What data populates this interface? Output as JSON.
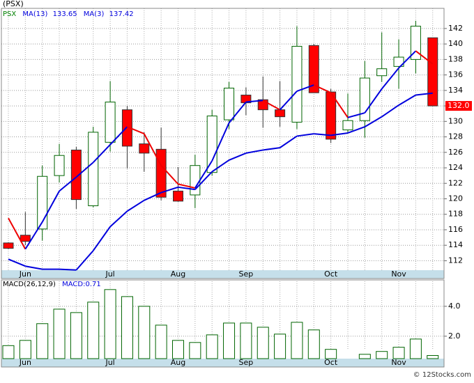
{
  "chart_data": [
    {
      "type": "candlestick",
      "title": "(PSX)",
      "categories": [
        null,
        "Jun",
        null,
        null,
        null,
        null,
        "Jul",
        null,
        null,
        null,
        "Aug",
        null,
        null,
        null,
        "Sep",
        null,
        null,
        null,
        null,
        "Oct",
        null,
        null,
        null,
        "Nov",
        null,
        null
      ],
      "open": [
        114.3,
        115.3,
        116.1,
        123.0,
        126.3,
        119.1,
        127.3,
        131.5,
        127.1,
        126.4,
        121.0,
        120.5,
        123.4,
        130.2,
        133.4,
        132.8,
        131.5,
        129.9,
        139.8,
        133.8,
        128.9,
        130.1,
        135.9,
        137.1,
        138.0,
        140.8
      ],
      "high": [
        114.4,
        118.3,
        124.3,
        127.1,
        126.7,
        129.3,
        135.2,
        132.0,
        128.6,
        129.2,
        124.1,
        125.7,
        131.5,
        135.1,
        134.4,
        135.8,
        135.2,
        142.3,
        140.0,
        134.2,
        133.6,
        137.8,
        141.5,
        140.6,
        143.0,
        140.8
      ],
      "low": [
        113.5,
        114.0,
        114.6,
        122.1,
        118.7,
        118.9,
        126.1,
        123.9,
        123.5,
        119.8,
        119.6,
        118.8,
        123.0,
        129.0,
        130.8,
        129.2,
        129.3,
        129.0,
        133.7,
        127.2,
        128.5,
        127.9,
        135.1,
        134.2,
        136.2,
        132.0
      ],
      "close": [
        113.6,
        114.5,
        122.9,
        125.6,
        119.9,
        128.6,
        132.5,
        126.8,
        125.9,
        120.2,
        119.7,
        124.3,
        130.7,
        134.3,
        132.4,
        131.5,
        130.6,
        139.7,
        133.7,
        127.7,
        130.1,
        135.6,
        136.8,
        138.3,
        142.3,
        132.0
      ],
      "name": "PSX",
      "name_color": "#008000",
      "up_color": "#006400",
      "down_color": "#ff0000",
      "series": [
        {
          "name": "MA(13)",
          "color": "#0000dd",
          "values": [
            112.2,
            111.3,
            110.9,
            110.9,
            110.8,
            113.3,
            116.4,
            118.4,
            119.8,
            120.8,
            121.5,
            121.2,
            123.5,
            125.0,
            125.9,
            126.3,
            126.6,
            128.1,
            128.4,
            128.2,
            128.5,
            129.3,
            130.6,
            132.1,
            133.4,
            133.65
          ]
        },
        {
          "name": "MA(3)",
          "color": "#0000dd",
          "down_color": "#ee0000",
          "values": [
            117.5,
            113.5,
            117.0,
            121.0,
            122.8,
            124.7,
            127.0,
            129.3,
            128.4,
            124.3,
            121.9,
            121.4,
            124.9,
            129.8,
            132.5,
            132.7,
            131.5,
            133.9,
            134.7,
            133.7,
            130.5,
            131.1,
            134.2,
            136.9,
            139.1,
            137.42
          ]
        }
      ],
      "last_price": {
        "value": 132.0,
        "label": "132.0"
      },
      "ylim": [
        109.7,
        144.6
      ],
      "yticks": [
        112,
        114,
        116,
        118,
        120,
        122,
        124,
        126,
        128,
        130,
        132,
        134,
        136,
        138,
        140,
        142
      ],
      "grid": true
    },
    {
      "type": "bar",
      "title": "MACD(26,12,9)",
      "value_name": "MACD:",
      "categories": [
        null,
        "Jun",
        null,
        null,
        null,
        null,
        "Jul",
        null,
        null,
        null,
        "Aug",
        null,
        null,
        null,
        "Sep",
        null,
        null,
        null,
        null,
        "Oct",
        null,
        null,
        null,
        "Nov",
        null,
        null
      ],
      "values": [
        1.37,
        1.72,
        2.84,
        3.81,
        3.58,
        4.28,
        5.12,
        4.65,
        4.0,
        2.74,
        1.72,
        1.58,
        2.09,
        2.88,
        2.88,
        2.6,
        2.14,
        2.93,
        2.42,
        1.12,
        null,
        0.79,
        0.98,
        1.26,
        1.81,
        0.71
      ],
      "color": "#006400",
      "ylim": [
        0.5,
        5.67
      ],
      "yticks": [
        {
          "value": 2,
          "label": "2.0"
        },
        {
          "value": 4,
          "label": "4.0"
        }
      ],
      "grid": true
    }
  ],
  "footer": "© 12Stocks.com"
}
